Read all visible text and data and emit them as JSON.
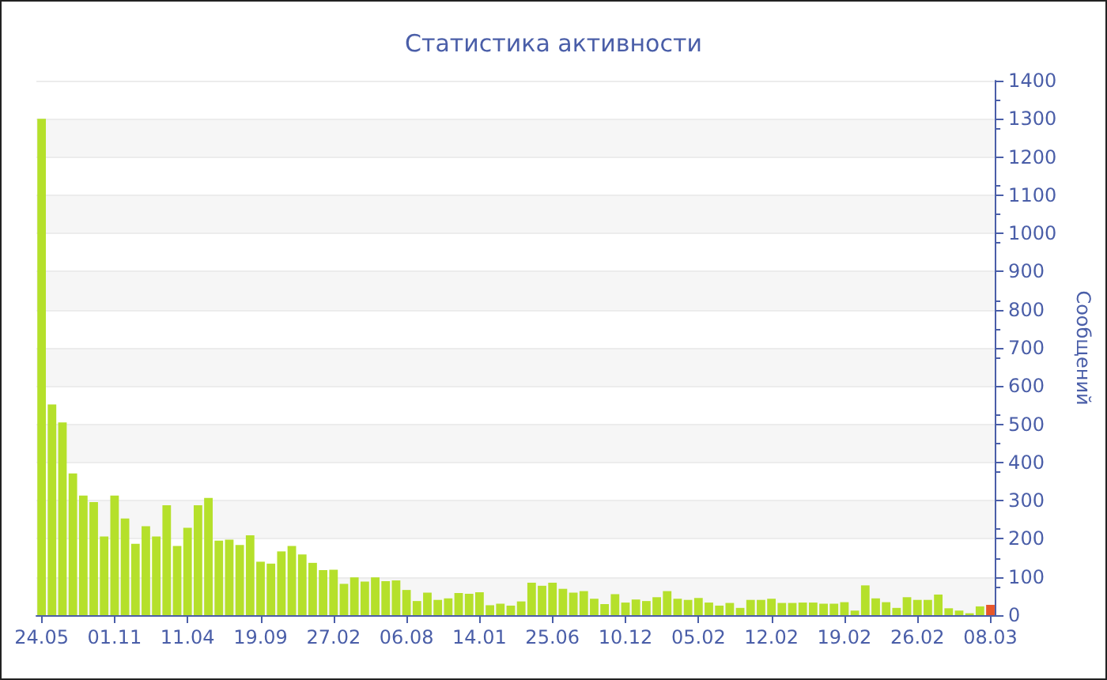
{
  "chart_data": {
    "type": "bar",
    "title": "Статистика активности",
    "ylabel": "Сообщений",
    "categories": [
      "24.05",
      null,
      null,
      null,
      null,
      null,
      null,
      "01.11",
      null,
      null,
      null,
      null,
      null,
      null,
      "11.04",
      null,
      null,
      null,
      null,
      null,
      null,
      "19.09",
      null,
      null,
      null,
      null,
      null,
      null,
      "27.02",
      null,
      null,
      null,
      null,
      null,
      null,
      "06.08",
      null,
      null,
      null,
      null,
      null,
      null,
      "14.01",
      null,
      null,
      null,
      null,
      null,
      null,
      "25.06",
      null,
      null,
      null,
      null,
      null,
      null,
      "10.12",
      null,
      null,
      null,
      null,
      null,
      null,
      "05.02",
      null,
      null,
      null,
      null,
      null,
      null,
      "12.02",
      null,
      null,
      null,
      null,
      null,
      null,
      "19.02",
      null,
      null,
      null,
      null,
      null,
      null,
      "26.02",
      null,
      null,
      null,
      null,
      null,
      null,
      "08.03"
    ],
    "values": [
      1300,
      552,
      505,
      371,
      313,
      296,
      206,
      313,
      253,
      187,
      233,
      206,
      288,
      181,
      229,
      288,
      307,
      195,
      198,
      184,
      209,
      140,
      135,
      167,
      181,
      159,
      137,
      118,
      119,
      82,
      99,
      88,
      99,
      89,
      91,
      66,
      37,
      59,
      40,
      44,
      58,
      56,
      60,
      26,
      30,
      25,
      36,
      85,
      77,
      85,
      69,
      59,
      63,
      43,
      29,
      55,
      33,
      41,
      37,
      47,
      63,
      43,
      40,
      45,
      33,
      25,
      32,
      19,
      40,
      40,
      43,
      32,
      32,
      33,
      33,
      30,
      30,
      34,
      12,
      78,
      44,
      34,
      19,
      47,
      40,
      40,
      54,
      18,
      12,
      5,
      23,
      27
    ],
    "colors": [
      "#b5e02b",
      "#b5e02b",
      "#b5e02b",
      "#b5e02b",
      "#b5e02b",
      "#b5e02b",
      "#b5e02b",
      "#b5e02b",
      "#b5e02b",
      "#b5e02b",
      "#b5e02b",
      "#b5e02b",
      "#b5e02b",
      "#b5e02b",
      "#b5e02b",
      "#b5e02b",
      "#b5e02b",
      "#b5e02b",
      "#b5e02b",
      "#b5e02b",
      "#b5e02b",
      "#b5e02b",
      "#b5e02b",
      "#b5e02b",
      "#b5e02b",
      "#b5e02b",
      "#b5e02b",
      "#b5e02b",
      "#b5e02b",
      "#b5e02b",
      "#b5e02b",
      "#b5e02b",
      "#b5e02b",
      "#b5e02b",
      "#b5e02b",
      "#b5e02b",
      "#b5e02b",
      "#b5e02b",
      "#b5e02b",
      "#b5e02b",
      "#b5e02b",
      "#b5e02b",
      "#b5e02b",
      "#b5e02b",
      "#b5e02b",
      "#b5e02b",
      "#b5e02b",
      "#b5e02b",
      "#b5e02b",
      "#b5e02b",
      "#b5e02b",
      "#b5e02b",
      "#b5e02b",
      "#b5e02b",
      "#b5e02b",
      "#b5e02b",
      "#b5e02b",
      "#b5e02b",
      "#b5e02b",
      "#b5e02b",
      "#b5e02b",
      "#b5e02b",
      "#b5e02b",
      "#b5e02b",
      "#b5e02b",
      "#b5e02b",
      "#b5e02b",
      "#b5e02b",
      "#b5e02b",
      "#b5e02b",
      "#b5e02b",
      "#b5e02b",
      "#b5e02b",
      "#b5e02b",
      "#b5e02b",
      "#b5e02b",
      "#b5e02b",
      "#b5e02b",
      "#b5e02b",
      "#b5e02b",
      "#b5e02b",
      "#b5e02b",
      "#b5e02b",
      "#b5e02b",
      "#b5e02b",
      "#b5e02b",
      "#b5e02b",
      "#b5e02b",
      "#b5e02b",
      "#b5e02b",
      "#b5e02b",
      "#e8562a"
    ],
    "ylim": [
      0,
      1400
    ],
    "yticks": [
      0,
      100,
      200,
      300,
      400,
      500,
      600,
      700,
      800,
      900,
      1000,
      1100,
      1200,
      1300,
      1400
    ],
    "grid": "y"
  }
}
